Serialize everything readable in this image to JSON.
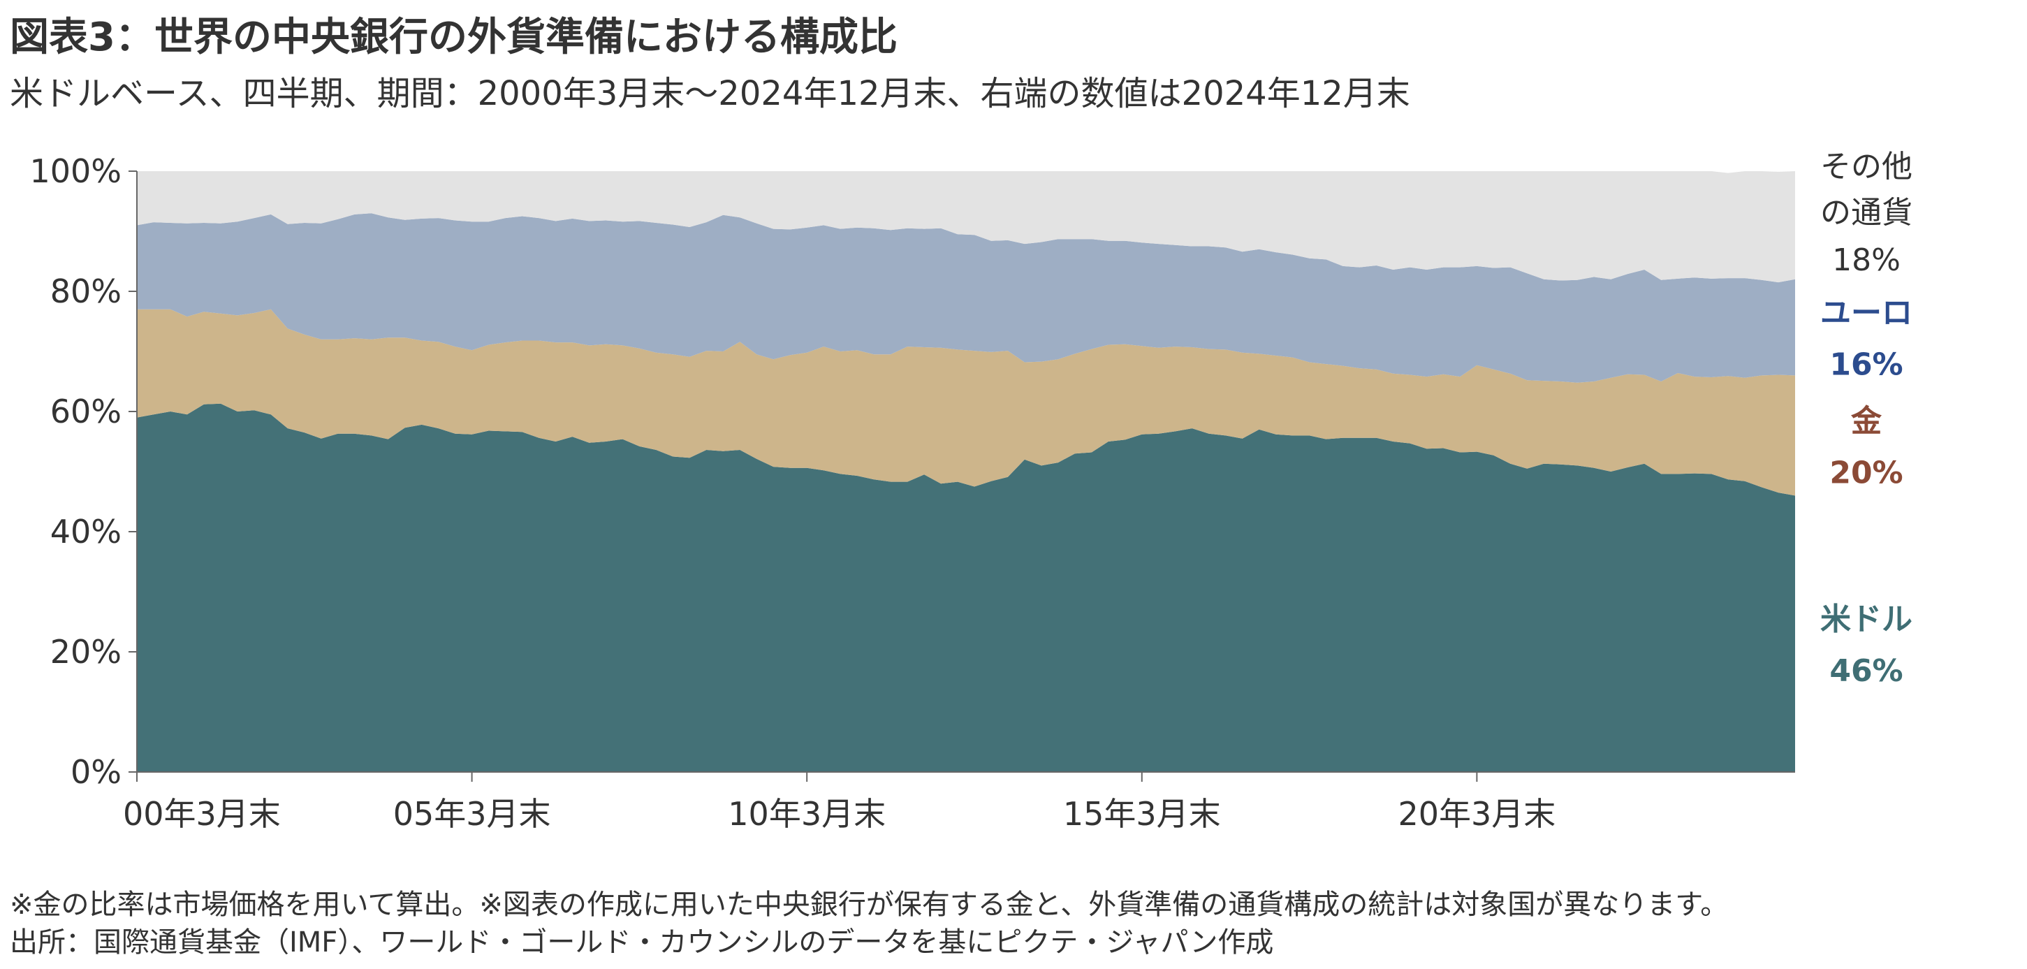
{
  "title": "図表3：世界の中央銀行の外貨準備における構成比",
  "subtitle": "米ドルベース、四半期、期間：2000年3月末～2024年12月末、右端の数値は2024年12月末",
  "notes": [
    "※金の比率は市場価格を用いて算出。※図表の作成に用いた中央銀行が保有する金と、外貨準備の通貨構成の統計は対象国が異なります。",
    "出所：国際通貨基金（IMF）、ワールド・ゴールド・カウンシルのデータを基にピクテ・ジャパン作成"
  ],
  "chart_data": {
    "type": "area",
    "stacked": true,
    "period": "2000年3月末～2024年12月末",
    "frequency": "quarterly",
    "x_start": "2000-03",
    "x_end": "2024-12",
    "xlabel": "",
    "ylabel": "",
    "ylim": [
      0,
      100
    ],
    "y_ticks": [
      "0%",
      "20%",
      "40%",
      "60%",
      "80%",
      "100%"
    ],
    "x_ticks": [
      "00年3月末",
      "05年3月末",
      "10年3月末",
      "15年3月末",
      "20年3月末"
    ],
    "grid": false,
    "colors": {
      "usd": "#447177",
      "gold": "#CDB58B",
      "euro": "#9EAEC4",
      "other": "#E3E3E3"
    },
    "series": [
      {
        "name": "米ドル",
        "end_label": "46%",
        "label_color": "#3F6E74",
        "values": [
          59,
          59.5,
          60,
          59.5,
          61.2,
          61.3,
          60,
          60.2,
          59.5,
          57.2,
          56.5,
          55.5,
          56.3,
          56.3,
          56,
          55.4,
          57.3,
          57.8,
          57.2,
          56.3,
          56.2,
          56.8,
          56.7,
          56.6,
          55.6,
          55,
          55.8,
          54.8,
          55,
          55.4,
          54.2,
          53.6,
          52.5,
          52.3,
          53.6,
          53.4,
          53.6,
          52.1,
          50.8,
          50.6,
          50.6,
          50.2,
          49.6,
          49.3,
          48.7,
          48.3,
          48.3,
          49.5,
          48,
          48.3,
          47.5,
          48.4,
          49.1,
          52,
          51,
          51.5,
          53,
          53.2,
          55,
          55.3,
          56.2,
          56.3,
          56.7,
          57.2,
          56.3,
          56,
          55.5,
          57,
          56.2,
          56,
          56,
          55.4,
          55.6,
          55.6,
          55.6,
          55,
          54.7,
          53.8,
          53.9,
          53.2,
          53.3,
          52.7,
          51.3,
          50.5,
          51.3,
          51.2,
          51,
          50.6,
          50,
          50.7,
          51.3,
          49.6,
          49.6,
          49.7,
          49.6,
          48.7,
          48.4,
          47.4,
          46.5,
          46
        ]
      },
      {
        "name": "金",
        "end_label": "20%",
        "label_color": "#8B4A36",
        "values": [
          18,
          17.5,
          17,
          16.3,
          15.4,
          15,
          16,
          16.2,
          17.5,
          16.6,
          16.3,
          16.5,
          15.7,
          15.9,
          16,
          16.9,
          15,
          14,
          14.4,
          14.5,
          14,
          14.3,
          14.8,
          15.2,
          16.2,
          16.5,
          15.7,
          16.2,
          16.2,
          15.6,
          16.3,
          16.2,
          17,
          16.8,
          16.5,
          16.6,
          18,
          17.4,
          17.9,
          18.8,
          19.2,
          20.6,
          20.4,
          20.9,
          20.8,
          21.2,
          22.5,
          21.2,
          22.6,
          22,
          22.6,
          21.5,
          21,
          16.2,
          17.3,
          17.2,
          16.6,
          17.2,
          16.1,
          15.9,
          14.7,
          14.3,
          14.1,
          13.5,
          14.1,
          14.3,
          14.3,
          12.6,
          13.1,
          13,
          12.2,
          12.5,
          12,
          11.6,
          11.4,
          11.3,
          11.4,
          12,
          12.3,
          12.6,
          14.4,
          14.3,
          15,
          14.7,
          13.8,
          13.8,
          13.8,
          14.4,
          15.6,
          15.5,
          14.8,
          15.4,
          16.8,
          16.1,
          16.1,
          17.2,
          17.2,
          18.6,
          19.6,
          20
        ]
      },
      {
        "name": "ユーロ",
        "end_label": "16%",
        "label_color": "#2C4C8E",
        "values": [
          14,
          14.5,
          14.4,
          15.5,
          14.8,
          15,
          15.6,
          15.8,
          15.8,
          17.4,
          18.6,
          19.3,
          20,
          20.6,
          21,
          20,
          19.6,
          20.3,
          20.6,
          21,
          21.4,
          20.5,
          20.7,
          20.7,
          20.4,
          20.2,
          20.6,
          20.7,
          20.6,
          20.6,
          21.2,
          21.6,
          21.6,
          21.6,
          21.4,
          22.7,
          20.7,
          21.8,
          21.7,
          20.9,
          20.8,
          20.2,
          20.4,
          20.4,
          21,
          20.7,
          19.7,
          19.7,
          19.9,
          19.2,
          19.3,
          18.5,
          18.4,
          19.7,
          19.9,
          20,
          19.1,
          18.3,
          17.3,
          17.2,
          17.2,
          17.3,
          16.9,
          16.8,
          17.1,
          17,
          16.8,
          17.4,
          17.2,
          17.1,
          17.3,
          17.4,
          16.6,
          16.8,
          17.3,
          17.3,
          17.9,
          17.8,
          17.8,
          18.2,
          16.5,
          16.9,
          17.7,
          17.8,
          16.9,
          16.8,
          17.1,
          17.4,
          16.4,
          16.7,
          17.5,
          16.9,
          15.7,
          16.5,
          16.4,
          16.3,
          16.6,
          15.9,
          15.4,
          16
        ]
      },
      {
        "name": "その他の通貨",
        "end_label": "18%",
        "label_color": "#333333",
        "values": [
          9,
          8.5,
          8.6,
          8.7,
          8.6,
          8.7,
          8.4,
          7.8,
          7.2,
          8.8,
          8.6,
          8.7,
          8,
          7.2,
          7,
          7.7,
          8.1,
          7.9,
          7.8,
          8.2,
          8.4,
          8.4,
          7.8,
          7.5,
          7.8,
          8.3,
          7.9,
          8.3,
          8.2,
          8.4,
          8.3,
          8.6,
          8.9,
          9.3,
          8.5,
          7.3,
          7.7,
          8.7,
          9.6,
          9.7,
          9.4,
          9,
          9.6,
          9.4,
          9.5,
          9.8,
          9.5,
          9.6,
          9.5,
          10.5,
          10.6,
          11.6,
          11.5,
          12.1,
          11.8,
          11.3,
          11.3,
          11.3,
          11.6,
          11.6,
          11.9,
          12.1,
          12.3,
          12.5,
          12.5,
          12.7,
          13.4,
          13,
          13.5,
          13.9,
          14.5,
          14.7,
          15.8,
          16,
          15.7,
          16.4,
          16,
          16.4,
          16,
          16,
          15.8,
          16.1,
          16,
          17,
          18,
          18.2,
          18.1,
          17.6,
          18,
          17.1,
          16.4,
          18.1,
          17.9,
          17.7,
          17.9,
          17.5,
          17.8,
          18.1,
          18.4,
          18
        ]
      }
    ]
  }
}
